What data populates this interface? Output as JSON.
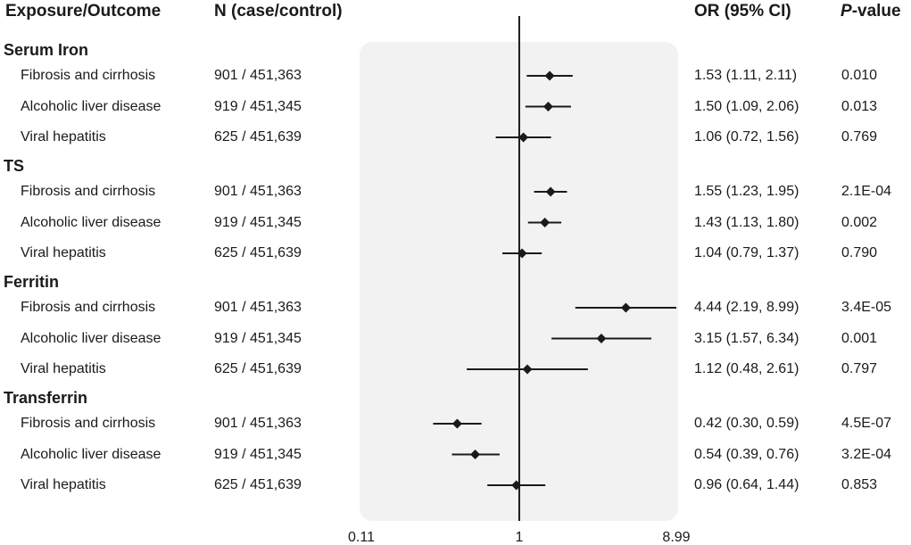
{
  "header": {
    "exposure": "Exposure/Outcome",
    "n": "N (case/control)",
    "or": "OR (95% CI)",
    "p_italic": "P",
    "p_rest": "-value"
  },
  "chart_data": {
    "type": "forest",
    "x_scale": "log",
    "xlim": [
      0.11,
      8.99
    ],
    "reference_line": 1,
    "x_ticks": [
      "0.11",
      "1",
      "8.99"
    ],
    "colors": {
      "panel": "#f2f2f2",
      "mark": "#1a1a1a"
    },
    "groups": [
      {
        "name": "Serum Iron",
        "rows": [
          {
            "outcome": "Fibrosis and cirrhosis",
            "n": "901 / 451,363",
            "or": 1.53,
            "lo": 1.11,
            "hi": 2.11,
            "or_text": "1.53 (1.11, 2.11)",
            "p": "0.010"
          },
          {
            "outcome": "Alcoholic liver disease",
            "n": "919 / 451,345",
            "or": 1.5,
            "lo": 1.09,
            "hi": 2.06,
            "or_text": "1.50 (1.09, 2.06)",
            "p": "0.013"
          },
          {
            "outcome": "Viral hepatitis",
            "n": "625 / 451,639",
            "or": 1.06,
            "lo": 0.72,
            "hi": 1.56,
            "or_text": "1.06 (0.72, 1.56)",
            "p": "0.769"
          }
        ]
      },
      {
        "name": "TS",
        "rows": [
          {
            "outcome": "Fibrosis and cirrhosis",
            "n": "901 / 451,363",
            "or": 1.55,
            "lo": 1.23,
            "hi": 1.95,
            "or_text": "1.55 (1.23, 1.95)",
            "p": "2.1E-04"
          },
          {
            "outcome": "Alcoholic liver disease",
            "n": "919 / 451,345",
            "or": 1.43,
            "lo": 1.13,
            "hi": 1.8,
            "or_text": "1.43 (1.13, 1.80)",
            "p": "0.002"
          },
          {
            "outcome": "Viral hepatitis",
            "n": "625 / 451,639",
            "or": 1.04,
            "lo": 0.79,
            "hi": 1.37,
            "or_text": "1.04 (0.79, 1.37)",
            "p": "0.790"
          }
        ]
      },
      {
        "name": "Ferritin",
        "rows": [
          {
            "outcome": "Fibrosis and cirrhosis",
            "n": "901 / 451,363",
            "or": 4.44,
            "lo": 2.19,
            "hi": 8.99,
            "or_text": "4.44 (2.19, 8.99)",
            "p": "3.4E-05"
          },
          {
            "outcome": "Alcoholic liver disease",
            "n": "919 / 451,345",
            "or": 3.15,
            "lo": 1.57,
            "hi": 6.34,
            "or_text": "3.15 (1.57, 6.34)",
            "p": "0.001"
          },
          {
            "outcome": "Viral hepatitis",
            "n": "625 / 451,639",
            "or": 1.12,
            "lo": 0.48,
            "hi": 2.61,
            "or_text": "1.12 (0.48, 2.61)",
            "p": "0.797"
          }
        ]
      },
      {
        "name": "Transferrin",
        "rows": [
          {
            "outcome": "Fibrosis and cirrhosis",
            "n": "901 / 451,363",
            "or": 0.42,
            "lo": 0.3,
            "hi": 0.59,
            "or_text": "0.42 (0.30, 0.59)",
            "p": "4.5E-07"
          },
          {
            "outcome": "Alcoholic liver disease",
            "n": "919 / 451,345",
            "or": 0.54,
            "lo": 0.39,
            "hi": 0.76,
            "or_text": "0.54 (0.39, 0.76)",
            "p": "3.2E-04"
          },
          {
            "outcome": "Viral hepatitis",
            "n": "625 / 451,639",
            "or": 0.96,
            "lo": 0.64,
            "hi": 1.44,
            "or_text": "0.96 (0.64, 1.44)",
            "p": "0.853"
          }
        ]
      }
    ]
  }
}
